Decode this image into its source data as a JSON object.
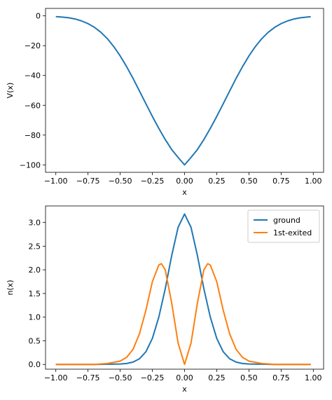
{
  "chart_data": [
    {
      "type": "line",
      "xlabel": "x",
      "ylabel": "V(x)",
      "xlim": [
        -1.08,
        1.08
      ],
      "ylim": [
        -105,
        5
      ],
      "xticks": [
        -1.0,
        -0.75,
        -0.5,
        -0.25,
        0.0,
        0.25,
        0.5,
        0.75,
        1.0
      ],
      "xtick_labels": [
        "−1.00",
        "−0.75",
        "−0.50",
        "−0.25",
        "0.00",
        "0.25",
        "0.50",
        "0.75",
        "1.00"
      ],
      "yticks": [
        0,
        -20,
        -40,
        -60,
        -80,
        -100
      ],
      "ytick_labels": [
        "0",
        "−20",
        "−40",
        "−60",
        "−80",
        "−100"
      ],
      "grid": false,
      "series": [
        {
          "color": "#1f77b4",
          "x": [
            -1.0,
            -0.95,
            -0.9,
            -0.85,
            -0.8,
            -0.75,
            -0.7,
            -0.65,
            -0.6,
            -0.55,
            -0.5,
            -0.45,
            -0.4,
            -0.35,
            -0.3,
            -0.25,
            -0.2,
            -0.15,
            -0.1,
            -0.05,
            0.0,
            0.05,
            0.1,
            0.15,
            0.2,
            0.25,
            0.3,
            0.35,
            0.4,
            0.45,
            0.5,
            0.55,
            0.6,
            0.65,
            0.7,
            0.75,
            0.8,
            0.85,
            0.9,
            0.95,
            0.98
          ],
          "y": [
            -0.5,
            -0.8,
            -1.3,
            -2.1,
            -3.4,
            -5.2,
            -7.7,
            -11.0,
            -15.3,
            -20.6,
            -26.9,
            -34.1,
            -42.0,
            -50.5,
            -59.0,
            -67.5,
            -75.5,
            -83.0,
            -89.7,
            -95.0,
            -100.0,
            -95.0,
            -89.7,
            -83.0,
            -75.5,
            -67.5,
            -59.0,
            -50.5,
            -42.0,
            -34.1,
            -26.9,
            -20.6,
            -15.3,
            -11.0,
            -7.7,
            -5.2,
            -3.4,
            -2.1,
            -1.3,
            -0.8,
            -0.6
          ]
        }
      ]
    },
    {
      "type": "line",
      "xlabel": "x",
      "ylabel": "n(x)",
      "xlim": [
        -1.08,
        1.08
      ],
      "ylim": [
        -0.1,
        3.35
      ],
      "xticks": [
        -1.0,
        -0.75,
        -0.5,
        -0.25,
        0.0,
        0.25,
        0.5,
        0.75,
        1.0
      ],
      "xtick_labels": [
        "−1.00",
        "−0.75",
        "−0.50",
        "−0.25",
        "0.00",
        "0.25",
        "0.50",
        "0.75",
        "1.00"
      ],
      "yticks": [
        0.0,
        0.5,
        1.0,
        1.5,
        2.0,
        2.5,
        3.0
      ],
      "ytick_labels": [
        "0.0",
        "0.5",
        "1.0",
        "1.5",
        "2.0",
        "2.5",
        "3.0"
      ],
      "grid": false,
      "legend": "top-right",
      "series": [
        {
          "name": "ground",
          "color": "#1f77b4",
          "x": [
            -1.0,
            -0.7,
            -0.5,
            -0.45,
            -0.4,
            -0.35,
            -0.3,
            -0.25,
            -0.2,
            -0.15,
            -0.1,
            -0.05,
            0.0,
            0.05,
            0.1,
            0.15,
            0.2,
            0.25,
            0.3,
            0.35,
            0.4,
            0.45,
            0.5,
            0.7,
            0.98
          ],
          "y": [
            0.0,
            0.0,
            0.01,
            0.02,
            0.05,
            0.12,
            0.27,
            0.55,
            1.0,
            1.6,
            2.3,
            2.9,
            3.18,
            2.9,
            2.3,
            1.6,
            1.0,
            0.55,
            0.27,
            0.12,
            0.05,
            0.02,
            0.01,
            0.0,
            0.0
          ]
        },
        {
          "name": "1st-exited",
          "color": "#ff7f0e",
          "x": [
            -1.0,
            -0.7,
            -0.6,
            -0.5,
            -0.45,
            -0.4,
            -0.35,
            -0.3,
            -0.25,
            -0.2,
            -0.18,
            -0.15,
            -0.1,
            -0.05,
            0.0,
            0.05,
            0.1,
            0.15,
            0.18,
            0.2,
            0.25,
            0.3,
            0.35,
            0.4,
            0.45,
            0.5,
            0.6,
            0.7,
            0.98
          ],
          "y": [
            0.0,
            0.0,
            0.02,
            0.07,
            0.15,
            0.32,
            0.65,
            1.15,
            1.75,
            2.1,
            2.13,
            2.0,
            1.3,
            0.45,
            0.0,
            0.45,
            1.3,
            2.0,
            2.13,
            2.1,
            1.75,
            1.15,
            0.65,
            0.32,
            0.15,
            0.07,
            0.02,
            0.0,
            0.0
          ]
        }
      ]
    }
  ]
}
